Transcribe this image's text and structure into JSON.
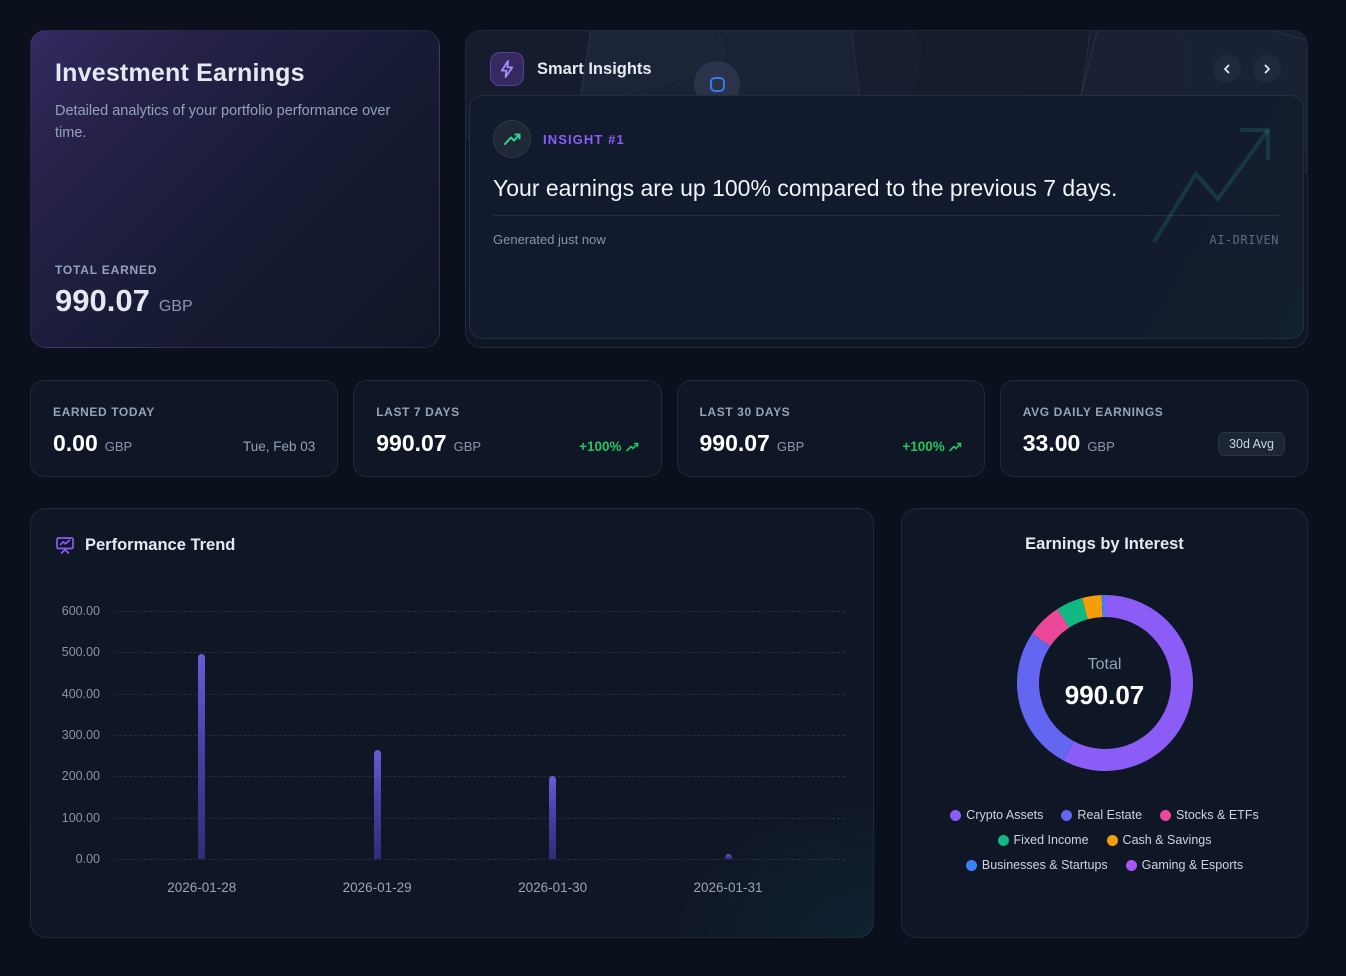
{
  "hero": {
    "title": "Investment Earnings",
    "subtitle": "Detailed analytics of your portfolio performance over time.",
    "total_label": "TOTAL EARNED",
    "total_value": "990.07",
    "total_currency": "GBP"
  },
  "insights": {
    "title": "Smart Insights",
    "badge": "INSIGHT #1",
    "headline": "Your earnings are up 100% compared to the previous 7 days.",
    "generated": "Generated just now",
    "tag": "AI-DRIVEN"
  },
  "stats": [
    {
      "label": "EARNED TODAY",
      "value": "0.00",
      "currency": "GBP",
      "date": "Tue, Feb 03"
    },
    {
      "label": "LAST 7 DAYS",
      "value": "990.07",
      "currency": "GBP",
      "change": "+100%"
    },
    {
      "label": "LAST 30 DAYS",
      "value": "990.07",
      "currency": "GBP",
      "change": "+100%"
    },
    {
      "label": "AVG DAILY EARNINGS",
      "value": "33.00",
      "currency": "GBP",
      "badge": "30d Avg"
    }
  ],
  "colors": {
    "accent_purple": "#8b5cf6",
    "positive_green": "#22c55e",
    "bar_gradient_top": "#6a5cd6",
    "bar_gradient_bottom": "#332c74"
  },
  "chart_data": [
    {
      "type": "bar",
      "title": "Performance Trend",
      "categories": [
        "2026-01-28",
        "2026-01-29",
        "2026-01-30",
        "2026-01-31"
      ],
      "values": [
        497,
        264,
        202,
        12
      ],
      "xlabel": "",
      "ylabel": "",
      "ylim": [
        0,
        600
      ],
      "yticks": [
        "600.00",
        "500.00",
        "400.00",
        "300.00",
        "200.00",
        "100.00",
        "0.00"
      ],
      "grid": "horizontal-dashed",
      "legend": "none"
    },
    {
      "type": "pie",
      "subtype": "donut",
      "title": "Earnings by Interest",
      "center_label": "Total",
      "center_value": "990.07",
      "start_angle_deg": 0,
      "direction": "clockwise",
      "segments": [
        {
          "label": "Crypto Assets",
          "color": "#8b5cf6",
          "percent": 57.8
        },
        {
          "label": "Real Estate",
          "color": "#6366f1",
          "percent": 26.7
        },
        {
          "label": "Stocks & ETFs",
          "color": "#ec4899",
          "percent": 6.4
        },
        {
          "label": "Fixed Income",
          "color": "#10b981",
          "percent": 4.9
        },
        {
          "label": "Cash & Savings",
          "color": "#f59e0b",
          "percent": 3.6
        },
        {
          "label": "Businesses & Startups",
          "color": "#3b82f6",
          "percent": 0.6
        },
        {
          "label": "Gaming & Esports",
          "color": "#a855f7",
          "percent": 0
        }
      ],
      "legend_position": "bottom"
    }
  ]
}
